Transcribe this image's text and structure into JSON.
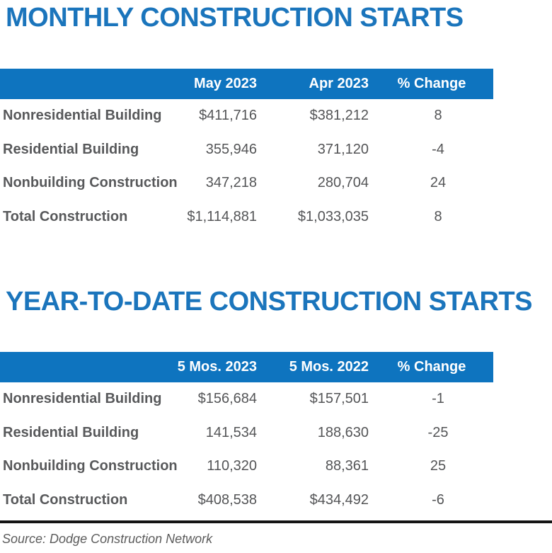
{
  "colors": {
    "title_blue": "#1b75bc",
    "header_bar_blue": "#0e74bf",
    "header_text": "#ffffff",
    "body_text_gray": "#58595b",
    "rule_black": "#141414"
  },
  "chart_data": [
    {
      "type": "table",
      "title": "MONTHLY CONSTRUCTION STARTS",
      "columns": [
        "",
        "May 2023",
        "Apr 2023",
        "% Change"
      ],
      "rows": [
        [
          "Nonresidential Building",
          "$411,716",
          "$381,212",
          "8"
        ],
        [
          "Residential Building",
          "355,946",
          "371,120",
          "-4"
        ],
        [
          "Nonbuilding Construction",
          "347,218",
          "280,704",
          "24"
        ],
        [
          "Total Construction",
          "$1,114,881",
          "$1,033,035",
          "8"
        ]
      ]
    },
    {
      "type": "table",
      "title": "YEAR-TO-DATE CONSTRUCTION STARTS",
      "columns": [
        "",
        "5 Mos. 2023",
        "5 Mos. 2022",
        "% Change"
      ],
      "rows": [
        [
          "Nonresidential Building",
          "$156,684",
          "$157,501",
          "-1"
        ],
        [
          "Residential Building",
          "141,534",
          "188,630",
          "-25"
        ],
        [
          "Nonbuilding Construction",
          "110,320",
          "88,361",
          "25"
        ],
        [
          "Total Construction",
          "$408,538",
          "$434,492",
          "-6"
        ]
      ]
    }
  ],
  "footer": {
    "source": "Source: Dodge Construction Network"
  }
}
